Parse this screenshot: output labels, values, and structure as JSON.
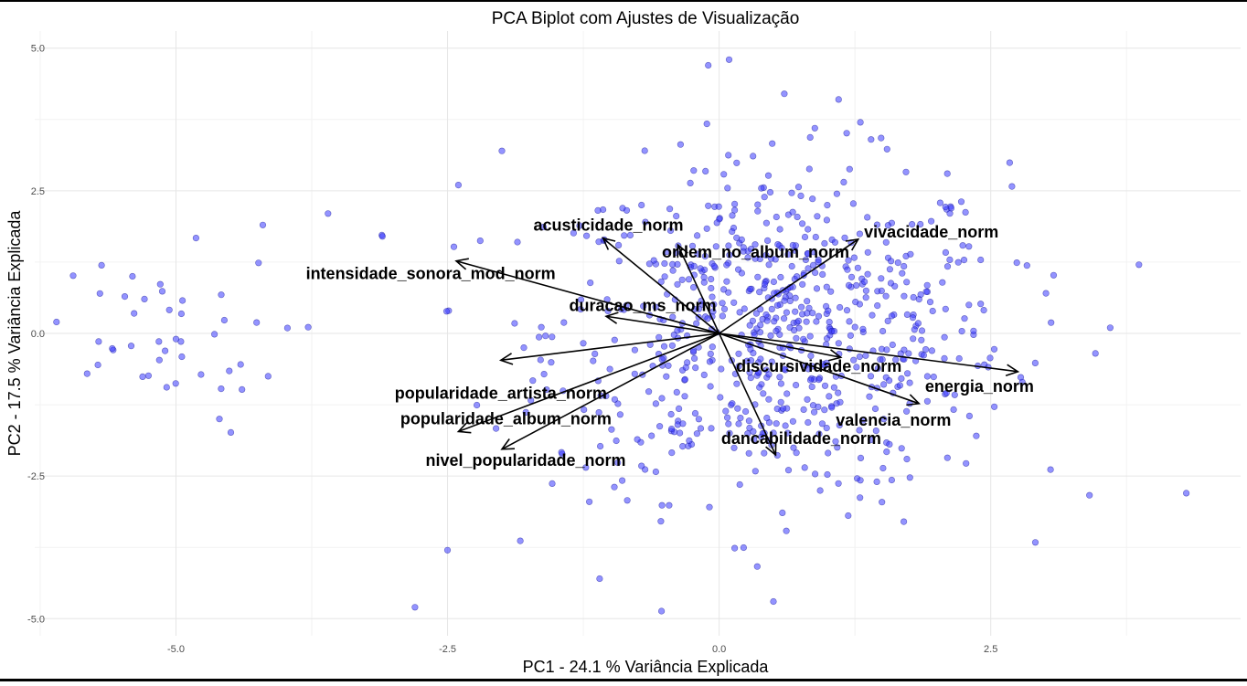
{
  "chart_data": {
    "type": "scatter",
    "title": "PCA Biplot com Ajustes de Visualização",
    "xlabel": "PC1 - 24.1 % Variância Explicada",
    "ylabel": "PC2 - 17.5 % Variância Explicada",
    "xlim": [
      -6.3,
      4.8
    ],
    "ylim": [
      -5.3,
      5.3
    ],
    "x_ticks": [
      -5.0,
      -2.5,
      0.0,
      2.5
    ],
    "x_tick_labels": [
      "-5.0",
      "-2.5",
      "0.0",
      "2.5"
    ],
    "y_ticks": [
      -5.0,
      -2.5,
      0.0,
      2.5,
      5.0
    ],
    "y_tick_labels": [
      "-5.0",
      "-2.5",
      "0.0",
      "2.5",
      "5.0"
    ],
    "grid": true,
    "point_color": "#3a3aff",
    "point_count": 800,
    "points_sample": [
      {
        "x": -6.1,
        "y": 0.2
      },
      {
        "x": -5.7,
        "y": 0.7
      },
      {
        "x": -5.4,
        "y": 1.0
      },
      {
        "x": -5.0,
        "y": -0.1
      },
      {
        "x": -4.6,
        "y": -1.5
      },
      {
        "x": -4.2,
        "y": 1.9
      },
      {
        "x": -3.6,
        "y": 2.1
      },
      {
        "x": -3.1,
        "y": 1.7
      },
      {
        "x": -2.8,
        "y": -4.8
      },
      {
        "x": -2.5,
        "y": -3.8
      },
      {
        "x": -2.4,
        "y": 2.6
      },
      {
        "x": -2.0,
        "y": 3.2
      },
      {
        "x": -1.1,
        "y": -4.3
      },
      {
        "x": -0.1,
        "y": 4.7
      },
      {
        "x": 0.5,
        "y": -4.7
      },
      {
        "x": 0.6,
        "y": 4.2
      },
      {
        "x": 1.1,
        "y": 4.1
      },
      {
        "x": 1.3,
        "y": 3.7
      },
      {
        "x": 1.7,
        "y": -3.3
      },
      {
        "x": 2.1,
        "y": 2.8
      },
      {
        "x": 3.6,
        "y": 0.1
      },
      {
        "x": 4.3,
        "y": -2.8
      }
    ],
    "loadings": [
      {
        "name": "acusticidade_norm",
        "x": -1.07,
        "y": 1.67
      },
      {
        "name": "vivacidade_norm",
        "x": 1.28,
        "y": 1.65
      },
      {
        "name": "ordem_no_album_norm",
        "x": -0.38,
        "y": 1.55
      },
      {
        "name": "intensidade_sonora_mod_norm",
        "x": -2.42,
        "y": 1.27
      },
      {
        "name": "duracao_ms_norm",
        "x": -1.04,
        "y": 0.3
      },
      {
        "name": "popularidade_artista_norm",
        "x": -2.01,
        "y": -0.47
      },
      {
        "name": "discursividade_norm",
        "x": 1.12,
        "y": -0.42
      },
      {
        "name": "energia_norm",
        "x": 2.75,
        "y": -0.67
      },
      {
        "name": "valencia_norm",
        "x": 1.84,
        "y": -1.23
      },
      {
        "name": "popularidade_album_norm",
        "x": -2.4,
        "y": -1.72
      },
      {
        "name": "nivel_popularidade_norm",
        "x": -2.0,
        "y": -2.03
      },
      {
        "name": "dancabilidade_norm",
        "x": 0.52,
        "y": -2.13
      }
    ]
  }
}
